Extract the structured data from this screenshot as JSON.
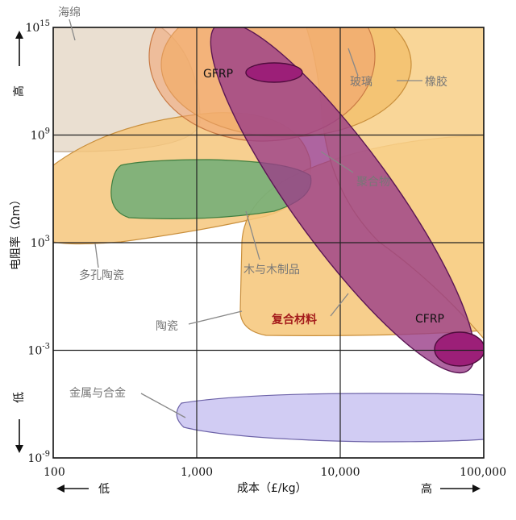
{
  "chart_data": {
    "type": "scatter",
    "title": "",
    "xlabel": "成本（£/kg）",
    "ylabel": "电阻率（Ωm）",
    "x_scale": "log",
    "y_scale": "log",
    "xlim": [
      100,
      100000
    ],
    "ylim": [
      1e-09,
      1000000000000000.0
    ],
    "x_ticks": [
      {
        "value": 100,
        "label": "100"
      },
      {
        "value": 1000,
        "label": "1,000"
      },
      {
        "value": 10000,
        "label": "10,000"
      },
      {
        "value": 100000,
        "label": "100,000"
      }
    ],
    "y_ticks": [
      {
        "value": 1000000000000000.0,
        "label_base": "10",
        "label_exp": "15"
      },
      {
        "value": 1000000000.0,
        "label_base": "10",
        "label_exp": "9"
      },
      {
        "value": 1000.0,
        "label_base": "10",
        "label_exp": "3"
      },
      {
        "value": 0.001,
        "label_base": "10",
        "label_exp": "-3"
      },
      {
        "value": 1e-09,
        "label_base": "10",
        "label_exp": "-9"
      }
    ],
    "grid": true,
    "axis_direction_labels": {
      "x_low": "低",
      "x_high": "高",
      "y_low": "低",
      "y_high": "高"
    },
    "regions": [
      {
        "name": "海绵",
        "color": "#e6d8c8",
        "x_range": [
          100,
          1100
        ],
        "y_range": [
          100000000.0,
          1000000000000000.0
        ]
      },
      {
        "name": "多孔陶瓷",
        "color": "#f7cd85",
        "x_range": [
          100,
          5000
        ],
        "y_range": [
          100.0,
          10000000000.0
        ]
      },
      {
        "name": "木与木制品",
        "color": "#7ab37a",
        "x_range": [
          450,
          8000
        ],
        "y_range": [
          100000.0,
          100000000.0
        ]
      },
      {
        "name": "陶瓷",
        "color": "#f7cd85",
        "x_range": [
          1500,
          60000
        ],
        "y_range": [
          0.01,
          100000000000.0
        ]
      },
      {
        "name": "玻璃",
        "color": "#f0a06e",
        "x_range": [
          1000,
          12000
        ],
        "y_range": [
          1000000000000.0,
          1000000000000000.0
        ]
      },
      {
        "name": "橡胶",
        "color": "#f5c06c",
        "x_range": [
          1200,
          60000
        ],
        "y_range": [
          1000000000.0,
          1000000000000000.0
        ]
      },
      {
        "name": "聚合物",
        "color": "#f8d28a",
        "x_range": [
          2000,
          100000
        ],
        "y_range": [
          0.001,
          1000000000000000.0
        ]
      },
      {
        "name": "复合材料",
        "color": "#9a3f87",
        "x_range": [
          1800,
          100000
        ],
        "y_range": [
          0.0001,
          1000000000000000.0
        ]
      },
      {
        "name": "GFRP",
        "color": "#9c1f78",
        "x_range": [
          2500,
          5300
        ],
        "y_range": [
          1000000000000.0,
          10000000000000.0
        ]
      },
      {
        "name": "CFRP",
        "color": "#9c1f78",
        "x_range": [
          55000,
          100000
        ],
        "y_range": [
          0.0001,
          0.01
        ]
      },
      {
        "name": "金属与合金",
        "color": "#cfc9f2",
        "x_range": [
          700,
          100000
        ],
        "y_range": [
          1e-08,
          1e-06
        ]
      }
    ]
  },
  "labels": {
    "haimian": "海绵",
    "duokong": "多孔陶瓷",
    "mu": "木与木制品",
    "taoci": "陶瓷",
    "boli": "玻璃",
    "xiangjiao": "橡胶",
    "juhewu": "聚合物",
    "fuhe": "复合材料",
    "gfrp": "GFRP",
    "cfrp": "CFRP",
    "jinshu": "金属与合金"
  }
}
